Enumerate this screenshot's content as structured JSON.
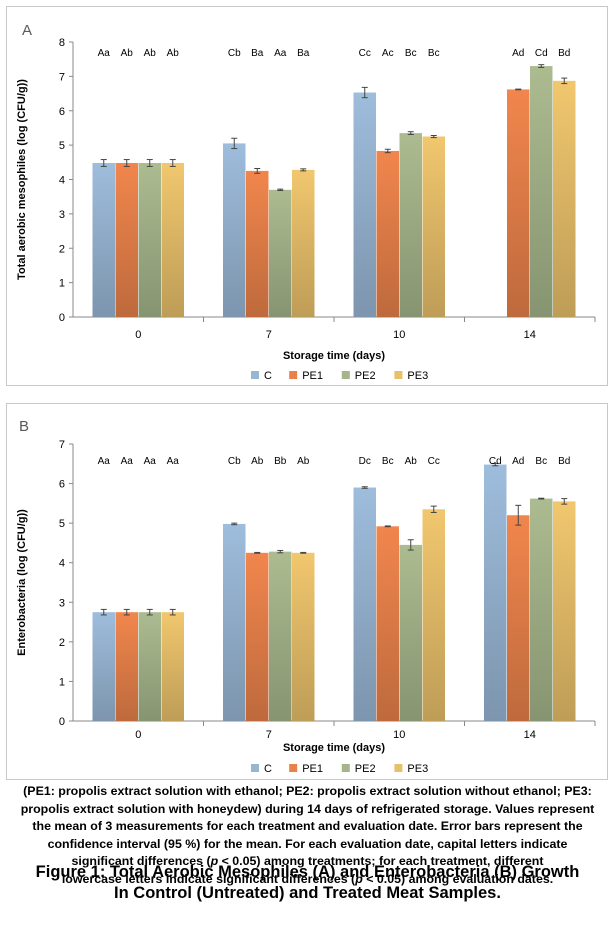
{
  "chart_data": [
    {
      "type": "bar",
      "panel_label": "A",
      "xlabel": "Storage time (days)",
      "ylabel": "Total aerobic mesophiles (log (CFU/g))",
      "categories": [
        "0",
        "7",
        "10",
        "14"
      ],
      "ylim": [
        0,
        8
      ],
      "yticks": [
        0,
        1,
        2,
        3,
        4,
        5,
        6,
        7,
        8
      ],
      "legend_position": "bottom",
      "series": [
        {
          "name": "C",
          "color": "#98b6d4",
          "values": [
            4.48,
            5.05,
            6.53,
            null
          ],
          "errors": [
            0.1,
            0.15,
            0.15,
            null
          ],
          "letters": [
            "Aa",
            "Cb",
            "Cc",
            ""
          ]
        },
        {
          "name": "PE1",
          "color": "#e8814a",
          "values": [
            4.48,
            4.25,
            4.83,
            6.62
          ],
          "errors": [
            0.1,
            0.07,
            0.05,
            0.01
          ],
          "letters": [
            "Ab",
            "Ba",
            "Ac",
            "Ad"
          ]
        },
        {
          "name": "PE2",
          "color": "#a5b48a",
          "values": [
            4.48,
            3.7,
            5.35,
            7.3
          ],
          "errors": [
            0.1,
            0.02,
            0.04,
            0.04
          ],
          "letters": [
            "Ab",
            "Aa",
            "Bc",
            "Cd"
          ]
        },
        {
          "name": "PE3",
          "color": "#e8bf6a",
          "values": [
            4.48,
            4.28,
            5.25,
            6.87
          ],
          "errors": [
            0.1,
            0.03,
            0.03,
            0.08
          ],
          "letters": [
            "Ab",
            "Ba",
            "Bc",
            "Bd"
          ]
        }
      ]
    },
    {
      "type": "bar",
      "panel_label": "B",
      "xlabel": "Storage time (days)",
      "ylabel": "Enterobacteria (log (CFU/g))",
      "categories": [
        "0",
        "7",
        "10",
        "14"
      ],
      "ylim": [
        0,
        7
      ],
      "yticks": [
        0,
        1,
        2,
        3,
        4,
        5,
        6,
        7
      ],
      "legend_position": "bottom",
      "series": [
        {
          "name": "C",
          "color": "#98b6d4",
          "values": [
            2.75,
            4.98,
            5.9,
            6.48
          ],
          "errors": [
            0.07,
            0.02,
            0.02,
            0.03
          ],
          "letters": [
            "Aa",
            "Cb",
            "Dc",
            "Cd"
          ]
        },
        {
          "name": "PE1",
          "color": "#e8814a",
          "values": [
            2.75,
            4.25,
            4.92,
            5.2
          ],
          "errors": [
            0.07,
            0.01,
            0.01,
            0.25
          ],
          "letters": [
            "Aa",
            "Ab",
            "Bc",
            "Ad"
          ]
        },
        {
          "name": "PE2",
          "color": "#a5b48a",
          "values": [
            2.75,
            4.28,
            4.45,
            5.62
          ],
          "errors": [
            0.07,
            0.03,
            0.13,
            0.01
          ],
          "letters": [
            "Aa",
            "Bb",
            "Ab",
            "Bc"
          ]
        },
        {
          "name": "PE3",
          "color": "#e8bf6a",
          "values": [
            2.75,
            4.25,
            5.35,
            5.55
          ],
          "errors": [
            0.07,
            0.01,
            0.08,
            0.07
          ],
          "letters": [
            "Aa",
            "Ab",
            "Cc",
            "Bd"
          ]
        }
      ]
    }
  ],
  "caption": {
    "line1": "(PE1: propolis extract solution with ethanol; PE2: propolis extract solution without ethanol; PE3:",
    "line2": "propolis extract solution with honeydew) during 14 days of refrigerated storage. Values represent",
    "line3": "the mean of 3 measurements for each treatment and evaluation date. Error bars represent the",
    "line4": "confidence interval (95 %) for the mean. For each evaluation date, capital letters indicate",
    "line5_pre": "significant differences (",
    "line5_p": "p",
    "line5_post": " < 0.05) among treatments; for each treatment, different",
    "line6_pre": "lowercase letters indicate significant differences (",
    "line6_p": "p",
    "line6_post": " < 0.05) among evaluation dates."
  },
  "figure_title": {
    "line1": "Figure 1: Total Aerobic Mesophiles (A) and Enterobacteria (B) Growth",
    "line2": "In Control (Untreated) and Treated Meat Samples."
  }
}
